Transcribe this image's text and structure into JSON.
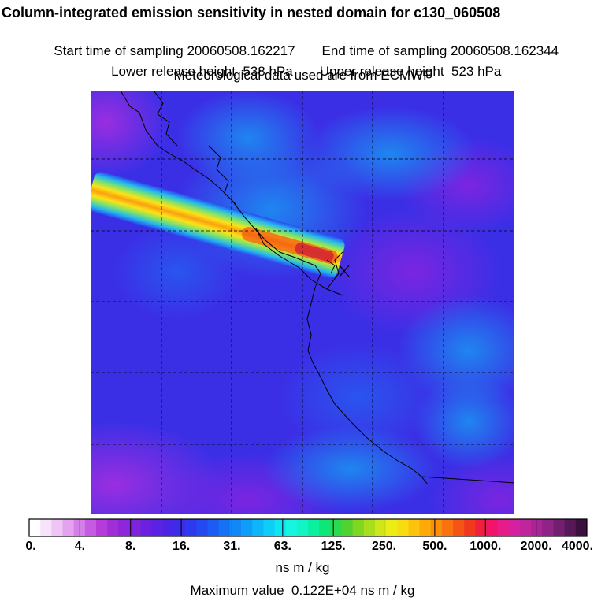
{
  "header": {
    "title": "Column-integrated emission sensitivity in nested domain for c130_060508",
    "start_label": "Start time of sampling",
    "start_value": "20060508.162217",
    "end_label": "End time of sampling",
    "end_value": "20060508.162344",
    "lower_label": "Lower release height",
    "lower_value": "538 hPa",
    "upper_label": "Upper release height",
    "upper_value": "523 hPa",
    "met_text": "Meteorological data used are from ECMWF"
  },
  "colorbar": {
    "colors": [
      "#ffffff",
      "#f7e3fa",
      "#eec5f6",
      "#e3a3f0",
      "#d57fe9",
      "#c75ae2",
      "#b53bdb",
      "#a12ed7",
      "#8f26d9",
      "#7d23dc",
      "#6b21df",
      "#5a22e2",
      "#4a25e6",
      "#3b2cea",
      "#2e38ee",
      "#2449f1",
      "#1c5cf4",
      "#1671f6",
      "#1187f8",
      "#0e9ef9",
      "#0cb6f9",
      "#0ccef7",
      "#0ee4f2",
      "#16f5e2",
      "#0ff5c5",
      "#0af0a0",
      "#0de678",
      "#27dc4f",
      "#52d230",
      "#7fd722",
      "#a8de1c",
      "#cfe619",
      "#ecec17",
      "#f9dc10",
      "#fbc30c",
      "#fca90a",
      "#fb8f0c",
      "#f9720f",
      "#f55415",
      "#f0381d",
      "#f01e3f",
      "#f0156a",
      "#e71b8a",
      "#d521a0",
      "#c0249f",
      "#a92594",
      "#8e2486",
      "#721f72",
      "#561856",
      "#3b1040"
    ],
    "ticks": [
      "0.",
      "4.",
      "8.",
      "16.",
      "31.",
      "63.",
      "125.",
      "250.",
      "500.",
      "1000.",
      "2000.",
      "4000."
    ],
    "units": "ns m / kg"
  },
  "footer": {
    "max_label": "Maximum value",
    "max_value": "0.122E+04",
    "max_units": "ns m / kg"
  },
  "map": {
    "grid_lines": 5,
    "plume_colors": [
      "#2a4af0",
      "#25b8ee",
      "#7fe36a",
      "#fbe316",
      "#fba010",
      "#f24a16",
      "#cc1a3a"
    ]
  }
}
